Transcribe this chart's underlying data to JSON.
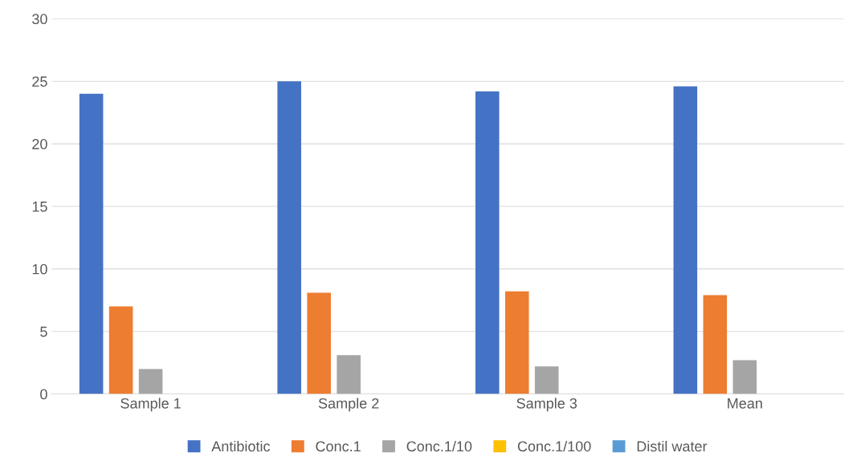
{
  "chart_data": {
    "type": "bar",
    "categories": [
      "Sample 1",
      "Sample 2",
      "Sample 3",
      "Mean"
    ],
    "series": [
      {
        "name": "Antibiotic",
        "color": "#4472c4",
        "values": [
          24,
          25,
          24.2,
          24.6
        ]
      },
      {
        "name": "Conc.1",
        "color": "#ed7d31",
        "values": [
          7,
          8.1,
          8.2,
          7.9
        ]
      },
      {
        "name": "Conc.1/10",
        "color": "#a5a5a5",
        "values": [
          2,
          3.1,
          2.2,
          2.7
        ]
      },
      {
        "name": "Conc.1/100",
        "color": "#ffc000",
        "values": [
          0,
          0,
          0,
          0
        ]
      },
      {
        "name": "Distil water",
        "color": "#5b9bd5",
        "values": [
          0,
          0,
          0,
          0
        ]
      }
    ],
    "ylim": [
      0,
      30
    ],
    "yticks": [
      0,
      5,
      10,
      15,
      20,
      25,
      30
    ],
    "grid": "y",
    "legend": "bottom"
  }
}
